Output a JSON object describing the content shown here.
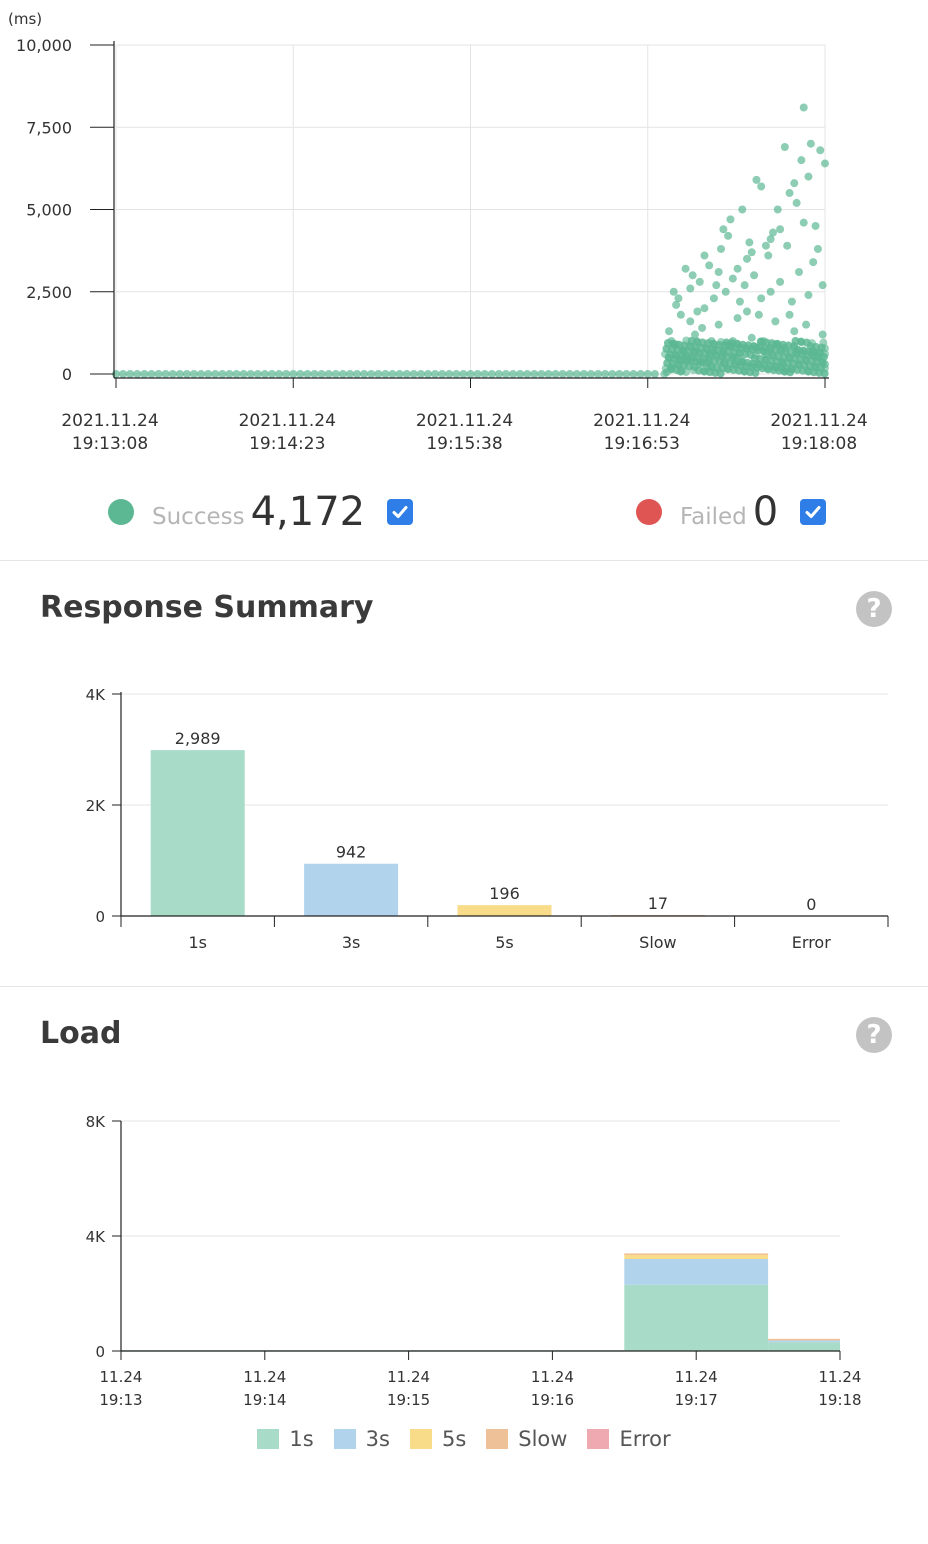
{
  "colors": {
    "success": "#5cb893",
    "failed": "#df5554",
    "bar_1s": "#a9dcc8",
    "bar_3s": "#b1d4ec",
    "bar_5s": "#f9dc8a",
    "bar_slow": "#efc198",
    "bar_error": "#eeaab0",
    "checkbox": "#2f7ee8"
  },
  "scatter": {
    "legend": {
      "success_label": "Success",
      "success_count": "4,172",
      "failed_label": "Failed",
      "failed_count": "0"
    }
  },
  "response_summary": {
    "title": "Response Summary",
    "help": "?"
  },
  "load": {
    "title": "Load",
    "help": "?"
  },
  "chart_data": [
    {
      "type": "scatter",
      "title": "",
      "ylabel": "(ms)",
      "ylim": [
        0,
        10000
      ],
      "yticks": [
        0,
        2500,
        5000,
        7500,
        10000
      ],
      "ytick_labels": [
        "0",
        "2,500",
        "5,000",
        "7,500",
        "10,000"
      ],
      "xlim_seconds": [
        0,
        300
      ],
      "xtick_seconds": [
        0,
        75,
        150,
        225,
        300
      ],
      "xtick_labels": [
        [
          "2021.11.24",
          "19:13:08"
        ],
        [
          "2021.11.24",
          "19:14:23"
        ],
        [
          "2021.11.24",
          "19:15:38"
        ],
        [
          "2021.11.24",
          "19:16:53"
        ],
        [
          "2021.11.24",
          "19:18:08"
        ]
      ],
      "series": [
        {
          "name": "Success",
          "count": 4172,
          "points": [
            [
              0,
              0
            ],
            [
              3,
              0
            ],
            [
              6,
              0
            ],
            [
              9,
              0
            ],
            [
              12,
              0
            ],
            [
              15,
              0
            ],
            [
              18,
              0
            ],
            [
              21,
              0
            ],
            [
              24,
              0
            ],
            [
              27,
              0
            ],
            [
              30,
              0
            ],
            [
              33,
              0
            ],
            [
              36,
              0
            ],
            [
              39,
              0
            ],
            [
              42,
              0
            ],
            [
              45,
              0
            ],
            [
              48,
              0
            ],
            [
              51,
              0
            ],
            [
              54,
              0
            ],
            [
              57,
              0
            ],
            [
              60,
              0
            ],
            [
              63,
              0
            ],
            [
              66,
              0
            ],
            [
              69,
              0
            ],
            [
              72,
              0
            ],
            [
              75,
              0
            ],
            [
              78,
              0
            ],
            [
              81,
              0
            ],
            [
              84,
              0
            ],
            [
              87,
              0
            ],
            [
              90,
              0
            ],
            [
              93,
              0
            ],
            [
              96,
              0
            ],
            [
              99,
              0
            ],
            [
              102,
              0
            ],
            [
              105,
              0
            ],
            [
              108,
              0
            ],
            [
              111,
              0
            ],
            [
              114,
              0
            ],
            [
              117,
              0
            ],
            [
              120,
              0
            ],
            [
              123,
              0
            ],
            [
              126,
              0
            ],
            [
              129,
              0
            ],
            [
              132,
              0
            ],
            [
              135,
              0
            ],
            [
              138,
              0
            ],
            [
              141,
              0
            ],
            [
              144,
              0
            ],
            [
              147,
              0
            ],
            [
              150,
              0
            ],
            [
              153,
              0
            ],
            [
              156,
              0
            ],
            [
              159,
              0
            ],
            [
              162,
              0
            ],
            [
              165,
              0
            ],
            [
              168,
              0
            ],
            [
              171,
              0
            ],
            [
              174,
              0
            ],
            [
              177,
              0
            ],
            [
              180,
              0
            ],
            [
              183,
              0
            ],
            [
              186,
              0
            ],
            [
              189,
              0
            ],
            [
              192,
              0
            ],
            [
              195,
              0
            ],
            [
              198,
              0
            ],
            [
              201,
              0
            ],
            [
              204,
              0
            ],
            [
              207,
              0
            ],
            [
              210,
              0
            ],
            [
              213,
              0
            ],
            [
              216,
              0
            ],
            [
              219,
              0
            ],
            [
              222,
              0
            ],
            [
              225,
              0
            ],
            [
              228,
              0
            ],
            [
              233,
              50
            ],
            [
              235,
              200
            ],
            [
              237,
              900
            ],
            [
              239,
              1800
            ],
            [
              241,
              600
            ],
            [
              243,
              2600
            ],
            [
              245,
              1200
            ],
            [
              247,
              300
            ],
            [
              249,
              2000
            ],
            [
              251,
              3300
            ],
            [
              253,
              700
            ],
            [
              255,
              1500
            ],
            [
              257,
              4400
            ],
            [
              259,
              900
            ],
            [
              261,
              2900
            ],
            [
              263,
              1700
            ],
            [
              265,
              400
            ],
            [
              267,
              3500
            ],
            [
              269,
              1100
            ],
            [
              271,
              5900
            ],
            [
              273,
              2300
            ],
            [
              275,
              600
            ],
            [
              277,
              4100
            ],
            [
              279,
              1600
            ],
            [
              281,
              2800
            ],
            [
              283,
              800
            ],
            [
              285,
              5500
            ],
            [
              287,
              1300
            ],
            [
              289,
              3100
            ],
            [
              291,
              8100
            ],
            [
              293,
              2400
            ],
            [
              295,
              700
            ],
            [
              297,
              3800
            ],
            [
              299,
              1200
            ],
            [
              260,
              4700
            ],
            [
              270,
              3000
            ],
            [
              280,
              5000
            ],
            [
              290,
              6500
            ],
            [
              294,
              7000
            ],
            [
              296,
              4500
            ],
            [
              298,
              6800
            ],
            [
              286,
              2200
            ],
            [
              276,
              3600
            ],
            [
              266,
              2700
            ],
            [
              256,
              3800
            ],
            [
              246,
              1900
            ],
            [
              238,
              2300
            ],
            [
              300,
              6400
            ],
            [
              288,
              5200
            ],
            [
              278,
              4300
            ],
            [
              268,
              4000
            ],
            [
              258,
              2500
            ],
            [
              248,
              1400
            ],
            [
              240,
              700
            ],
            [
              252,
              1000
            ],
            [
              262,
              500
            ],
            [
              272,
              1800
            ],
            [
              282,
              300
            ],
            [
              292,
              1500
            ],
            [
              234,
              1300
            ],
            [
              236,
              2500
            ],
            [
              242,
              400
            ],
            [
              244,
              3000
            ],
            [
              250,
              200
            ],
            [
              254,
              2700
            ],
            [
              264,
              2200
            ],
            [
              274,
              1000
            ],
            [
              284,
              3900
            ],
            [
              300,
              300
            ],
            [
              299,
              2700
            ],
            [
              297,
              500
            ],
            [
              295,
              3400
            ],
            [
              293,
              6000
            ],
            [
              291,
              4600
            ],
            [
              289,
              700
            ],
            [
              287,
              5800
            ],
            [
              285,
              1800
            ],
            [
              283,
              6900
            ],
            [
              281,
              4400
            ],
            [
              279,
              900
            ],
            [
              277,
              2500
            ],
            [
              275,
              3900
            ],
            [
              273,
              5700
            ],
            [
              271,
              800
            ],
            [
              269,
              3700
            ],
            [
              267,
              1900
            ],
            [
              265,
              5000
            ],
            [
              263,
              3200
            ],
            [
              261,
              1000
            ],
            [
              259,
              4200
            ],
            [
              257,
              600
            ],
            [
              255,
              3100
            ],
            [
              253,
              2300
            ],
            [
              251,
              600
            ],
            [
              249,
              3600
            ],
            [
              247,
              2800
            ],
            [
              245,
              700
            ],
            [
              243,
              1600
            ],
            [
              241,
              3200
            ],
            [
              239,
              400
            ],
            [
              237,
              2100
            ],
            [
              235,
              1000
            ]
          ]
        },
        {
          "name": "Failed",
          "count": 0,
          "points": []
        }
      ]
    },
    {
      "type": "bar",
      "title": "Response Summary",
      "categories": [
        "1s",
        "3s",
        "5s",
        "Slow",
        "Error"
      ],
      "values": [
        2989,
        942,
        196,
        17,
        0
      ],
      "value_labels": [
        "2,989",
        "942",
        "196",
        "17",
        "0"
      ],
      "ylim": [
        0,
        4000
      ],
      "yticks": [
        0,
        2000,
        4000
      ],
      "ytick_labels": [
        "0",
        "2K",
        "4K"
      ]
    },
    {
      "type": "area",
      "stacked": true,
      "title": "Load",
      "ylim": [
        0,
        8000
      ],
      "yticks": [
        0,
        4000,
        8000
      ],
      "ytick_labels": [
        "0",
        "4K",
        "8K"
      ],
      "xtick_labels": [
        [
          "11.24",
          "19:13"
        ],
        [
          "11.24",
          "19:14"
        ],
        [
          "11.24",
          "19:15"
        ],
        [
          "11.24",
          "19:16"
        ],
        [
          "11.24",
          "19:17"
        ],
        [
          "11.24",
          "19:18"
        ]
      ],
      "bins": [
        {
          "start": 0.0,
          "end": 3.5,
          "values": [
            30,
            0,
            0,
            0,
            0
          ]
        },
        {
          "start": 3.5,
          "end": 4.5,
          "values": [
            2300,
            900,
            180,
            15,
            0
          ]
        },
        {
          "start": 4.5,
          "end": 5.0,
          "values": [
            300,
            100,
            20,
            2,
            0
          ]
        }
      ],
      "series": [
        {
          "name": "1s"
        },
        {
          "name": "3s"
        },
        {
          "name": "5s"
        },
        {
          "name": "Slow"
        },
        {
          "name": "Error"
        }
      ]
    }
  ]
}
